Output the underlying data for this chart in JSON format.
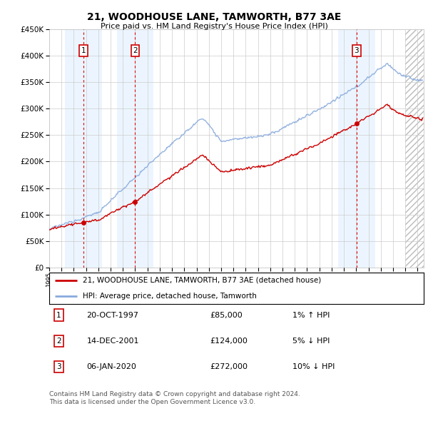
{
  "title": "21, WOODHOUSE LANE, TAMWORTH, B77 3AE",
  "subtitle": "Price paid vs. HM Land Registry's House Price Index (HPI)",
  "ylabel_ticks": [
    0,
    50000,
    100000,
    150000,
    200000,
    250000,
    300000,
    350000,
    400000,
    450000
  ],
  "xmin": 1995.0,
  "xmax": 2025.5,
  "ymin": 0,
  "ymax": 450000,
  "transactions": [
    {
      "num": 1,
      "year": 1997.8,
      "price": 85000,
      "date": "20-OCT-1997",
      "pct": "1%",
      "dir": "↑"
    },
    {
      "num": 2,
      "year": 2002.0,
      "price": 124000,
      "date": "14-DEC-2001",
      "pct": "5%",
      "dir": "↓"
    },
    {
      "num": 3,
      "year": 2020.03,
      "price": 272000,
      "date": "06-JAN-2020",
      "pct": "10%",
      "dir": "↓"
    }
  ],
  "legend_line1": "21, WOODHOUSE LANE, TAMWORTH, B77 3AE (detached house)",
  "legend_line2": "HPI: Average price, detached house, Tamworth",
  "footer1": "Contains HM Land Registry data © Crown copyright and database right 2024.",
  "footer2": "This data is licensed under the Open Government Licence v3.0.",
  "line_color_red": "#cc0000",
  "line_color_blue": "#88aadd",
  "marker_color": "#cc0000",
  "shade_color": "#ddeeff",
  "grid_color": "#cccccc",
  "background_color": "#ffffff",
  "shade_alpha": 0.55,
  "hatch_start": 2024.0
}
